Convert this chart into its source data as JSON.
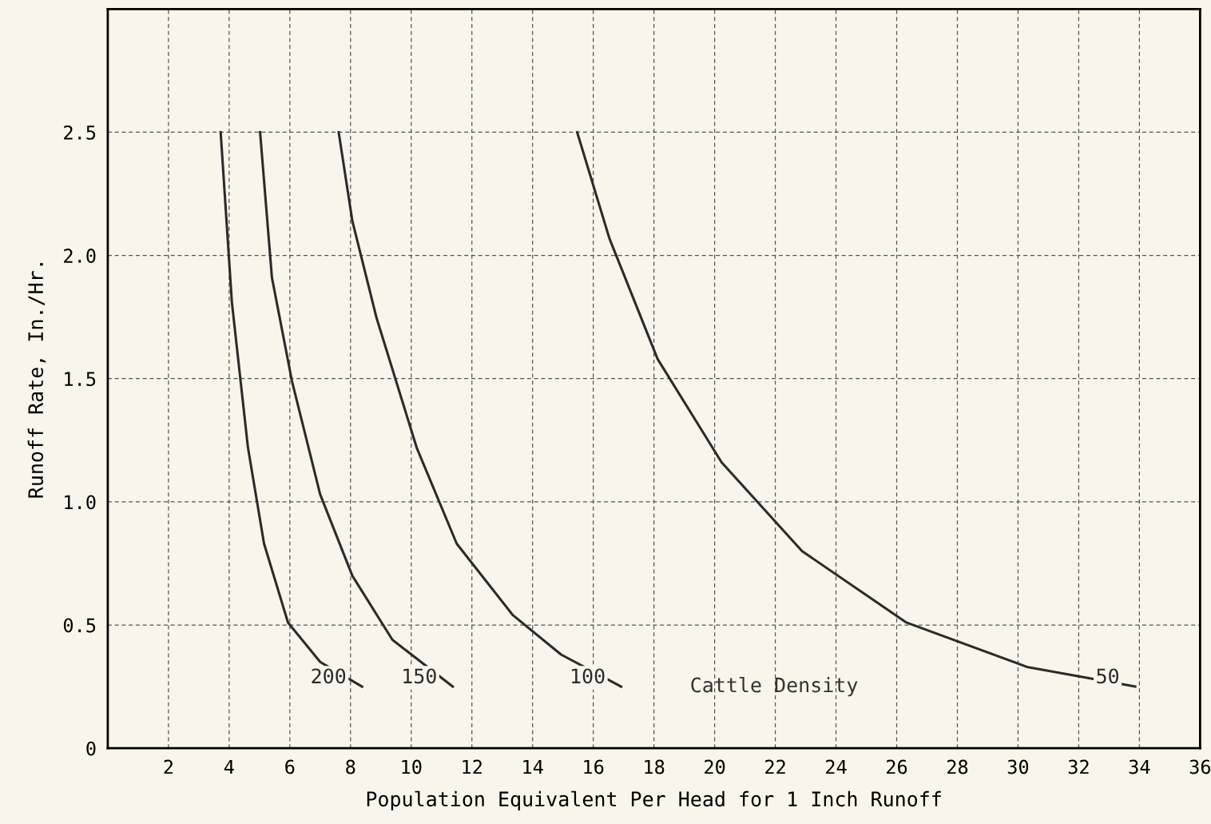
{
  "chart_data": {
    "type": "line",
    "xlabel": "Population Equivalent Per Head for 1 Inch Runoff",
    "ylabel": "Runoff Rate, In./Hr.",
    "xlim": [
      0,
      36
    ],
    "ylim": [
      0,
      3
    ],
    "xticks": [
      2,
      4,
      6,
      8,
      10,
      12,
      14,
      16,
      18,
      20,
      22,
      24,
      26,
      28,
      30,
      32,
      34,
      36
    ],
    "yticks": [
      0,
      0.5,
      {
        "value": 1,
        "label": "1.0"
      },
      1.5,
      {
        "value": 2,
        "label": "2.0"
      },
      2.5
    ],
    "grid": true,
    "legend": false,
    "marker": "none",
    "line_style": "solid",
    "annotations": [
      "Cattle Density"
    ],
    "series": [
      {
        "name": "200",
        "color": "#2b2b2b",
        "x": [
          3.72,
          4.09,
          4.62,
          5.15,
          5.94,
          7.0,
          8.38
        ],
        "values": [
          2.5,
          1.81,
          1.22,
          0.83,
          0.51,
          0.35,
          0.25
        ]
      },
      {
        "name": "150",
        "color": "#2b2b2b",
        "x": [
          5.02,
          5.41,
          6.07,
          7.0,
          8.06,
          9.38,
          11.37
        ],
        "values": [
          2.5,
          1.91,
          1.49,
          1.03,
          0.7,
          0.44,
          0.25
        ]
      },
      {
        "name": "100",
        "color": "#2b2b2b",
        "x": [
          7.61,
          8.06,
          8.85,
          10.18,
          11.5,
          13.35,
          14.94,
          16.92
        ],
        "values": [
          2.5,
          2.14,
          1.75,
          1.22,
          0.83,
          0.54,
          0.38,
          0.25
        ]
      },
      {
        "name": "50",
        "color": "#2b2b2b",
        "x": [
          15.47,
          16.53,
          18.12,
          20.23,
          22.88,
          26.32,
          30.29,
          33.86
        ],
        "values": [
          2.5,
          2.07,
          1.58,
          1.16,
          0.8,
          0.51,
          0.33,
          0.25
        ]
      }
    ]
  }
}
